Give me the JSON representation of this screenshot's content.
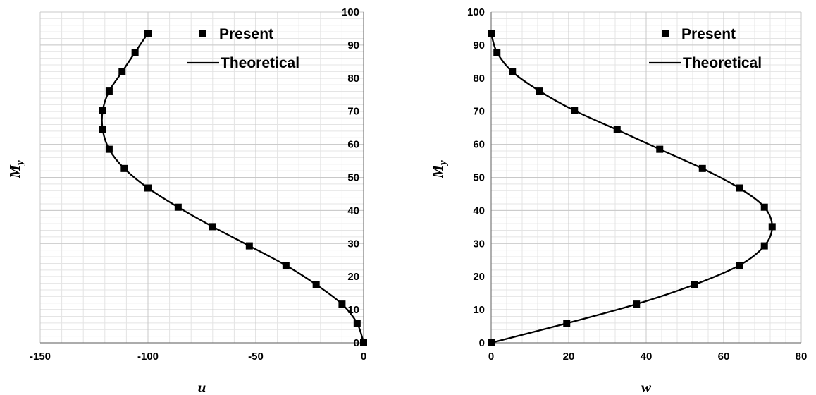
{
  "chart_data": [
    {
      "type": "line",
      "xlabel": "u",
      "ylabel": "M",
      "ylabel_sub": "y",
      "xlim": [
        -150,
        0
      ],
      "ylim": [
        0,
        100
      ],
      "xticks": [
        -150,
        -100,
        -50,
        0
      ],
      "yticks": [
        0,
        10,
        20,
        30,
        40,
        50,
        60,
        70,
        80,
        90,
        100
      ],
      "y_axis_side": "right",
      "grid": true,
      "legend_position": "top-right",
      "series": [
        {
          "name": "Present",
          "style": "markers",
          "x": [
            0,
            -3,
            -10,
            -22,
            -36,
            -53,
            -70,
            -86,
            -100,
            -111,
            -118,
            -121,
            -121,
            -118,
            -112,
            -106,
            -100
          ],
          "y": [
            0,
            5.9,
            11.7,
            17.6,
            23.4,
            29.3,
            35.1,
            41.0,
            46.8,
            52.7,
            58.5,
            64.4,
            70.2,
            76.1,
            81.9,
            87.8,
            93.6
          ]
        },
        {
          "name": "Theoretical",
          "style": "line",
          "x": [
            0,
            -3,
            -10,
            -22,
            -36,
            -53,
            -70,
            -86,
            -100,
            -111,
            -118,
            -121,
            -121,
            -118,
            -112,
            -106,
            -100
          ],
          "y": [
            0,
            5.9,
            11.7,
            17.6,
            23.4,
            29.3,
            35.1,
            41.0,
            46.8,
            52.7,
            58.5,
            64.4,
            70.2,
            76.1,
            81.9,
            87.8,
            93.6
          ]
        }
      ]
    },
    {
      "type": "line",
      "xlabel": "w",
      "ylabel": "M",
      "ylabel_sub": "y",
      "xlim": [
        0,
        80
      ],
      "ylim": [
        0,
        100
      ],
      "xticks": [
        0,
        20,
        40,
        60,
        80
      ],
      "yticks": [
        0,
        10,
        20,
        30,
        40,
        50,
        60,
        70,
        80,
        90,
        100
      ],
      "y_axis_side": "left",
      "grid": true,
      "legend_position": "top-right",
      "series": [
        {
          "name": "Present",
          "style": "markers",
          "x": [
            0,
            19.5,
            37.5,
            52.5,
            64,
            70.5,
            72.5,
            70.5,
            64,
            54.5,
            43.5,
            32.5,
            21.5,
            12.5,
            5.5,
            1.5,
            0
          ],
          "y": [
            0,
            5.9,
            11.7,
            17.6,
            23.4,
            29.3,
            35.1,
            41.0,
            46.8,
            52.7,
            58.5,
            64.4,
            70.2,
            76.1,
            81.9,
            87.8,
            93.6
          ]
        },
        {
          "name": "Theoretical",
          "style": "line",
          "x": [
            0,
            19.5,
            37.5,
            52.5,
            64,
            70.5,
            72.5,
            70.5,
            64,
            54.5,
            43.5,
            32.5,
            21.5,
            12.5,
            5.5,
            1.5,
            0
          ],
          "y": [
            0,
            5.9,
            11.7,
            17.6,
            23.4,
            29.3,
            35.1,
            41.0,
            46.8,
            52.7,
            58.5,
            64.4,
            70.2,
            76.1,
            81.9,
            87.8,
            93.6
          ]
        }
      ]
    }
  ]
}
